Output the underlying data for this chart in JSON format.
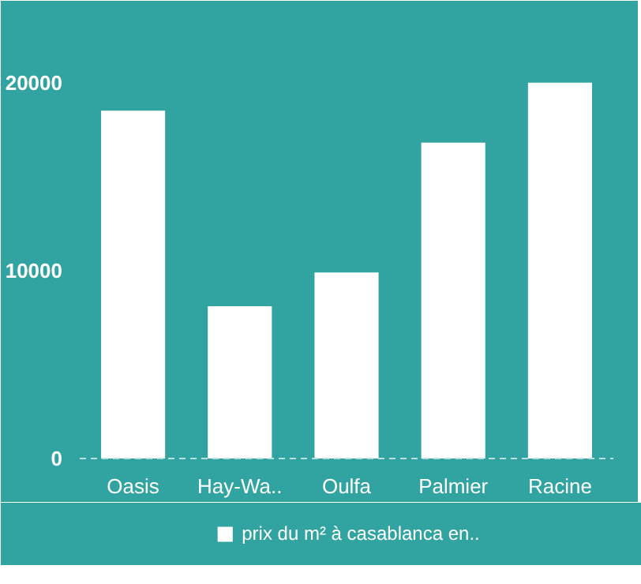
{
  "chart_data": {
    "type": "bar",
    "categories": [
      "Oasis",
      "Hay-Wa..",
      "Oulfa",
      "Palmier",
      "Racine"
    ],
    "series": [
      {
        "name": "prix du m² à casablanca en..",
        "color": "#ffffff",
        "values": [
          18500,
          8100,
          9900,
          16800,
          20000
        ]
      }
    ],
    "ylim": [
      0,
      22000
    ],
    "yticks": [
      0,
      10000,
      20000
    ],
    "grid": false,
    "legend": "bottom"
  }
}
